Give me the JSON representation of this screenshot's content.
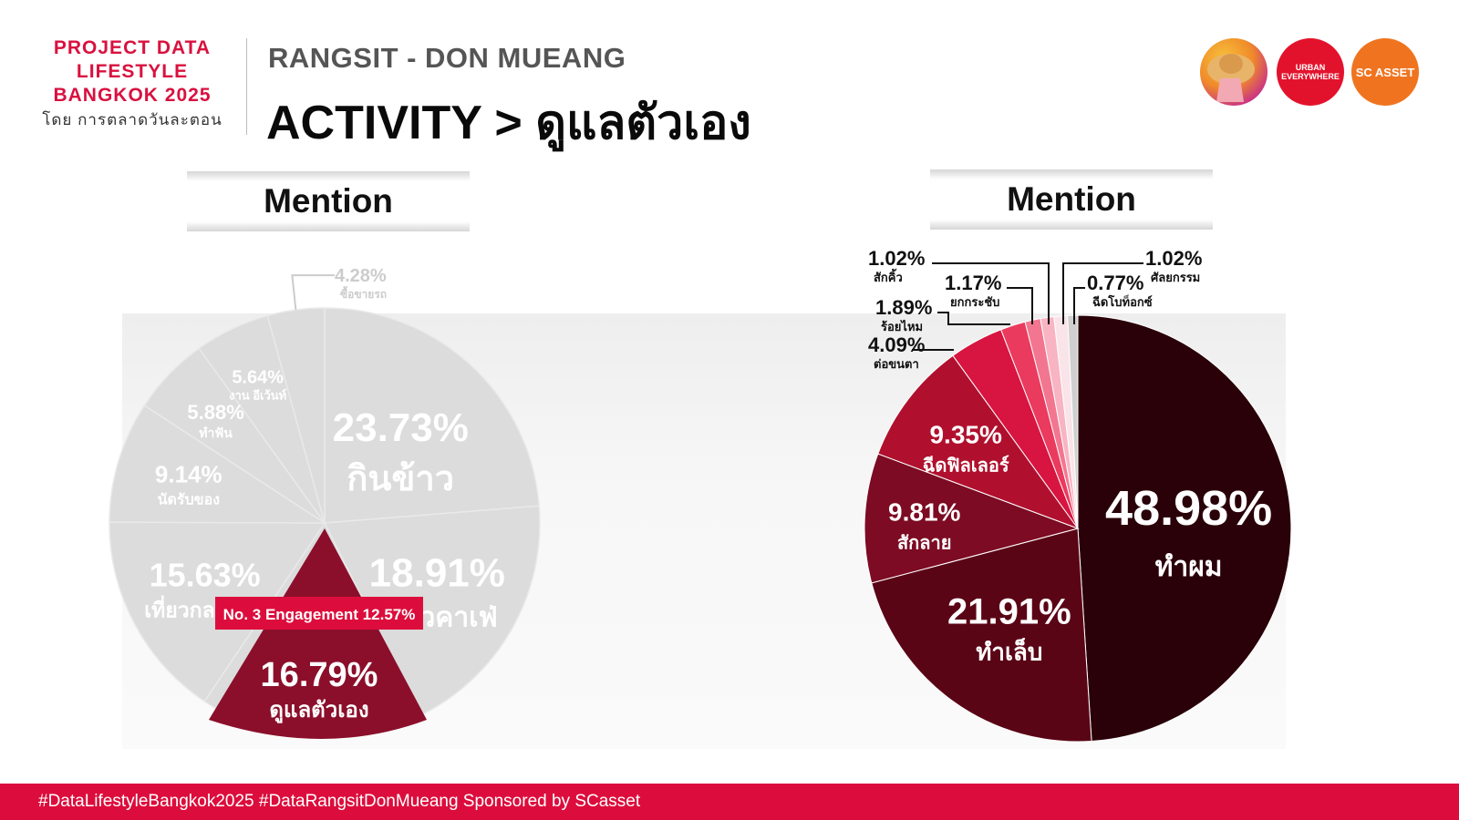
{
  "brand": {
    "line1": "PROJECT DATA",
    "line2": "LIFESTYLE",
    "line3": "BANGKOK 2025",
    "sub": "โดย การตลาดวันละตอน"
  },
  "header": {
    "subtitle": "RANGSIT - DON MUEANG",
    "title": "ACTIVITY > ดูแลตัวเอง"
  },
  "logos": {
    "logo2_text": "URBAN EVERYWHERE",
    "logo3_text": "SC ASSET"
  },
  "colors": {
    "accent": "#dc0d3c",
    "pie_gray": "#dcdcdc",
    "highlight": "#8b0f2b"
  },
  "chart_data": [
    {
      "type": "pie",
      "title": "Mention",
      "unit": "%",
      "slices": [
        {
          "label": "กินข้าว",
          "value": 23.73
        },
        {
          "label": "เที่ยวคาเฟ่",
          "value": 18.91
        },
        {
          "label": "ดูแลตัวเอง",
          "value": 16.79,
          "highlight": true
        },
        {
          "label": "เที่ยวกลางคืน",
          "value": 15.63
        },
        {
          "label": "นัดรับของ",
          "value": 9.14
        },
        {
          "label": "ทำฟัน",
          "value": 5.88
        },
        {
          "label": "งาน อีเว้นท์",
          "value": 5.64
        },
        {
          "label": "ซื้อขายรถ",
          "value": 4.28
        }
      ],
      "annotation": "No. 3 Engagement 12.57%"
    },
    {
      "type": "pie",
      "title": "Mention",
      "unit": "%",
      "slices": [
        {
          "label": "ทำผม",
          "value": 48.98,
          "color": "#2a0009"
        },
        {
          "label": "ทำเล็บ",
          "value": 21.91,
          "color": "#5a0516"
        },
        {
          "label": "สักลาย",
          "value": 9.81,
          "color": "#7c0b23"
        },
        {
          "label": "ฉีดฟิลเลอร์",
          "value": 9.35,
          "color": "#b0102e"
        },
        {
          "label": "ต่อขนตา",
          "value": 4.09,
          "color": "#d81440"
        },
        {
          "label": "ร้อยไหม",
          "value": 1.89,
          "color": "#ea3a5e"
        },
        {
          "label": "ยกกระชับ",
          "value": 1.17,
          "color": "#f2768f"
        },
        {
          "label": "สักคิ้ว",
          "value": 1.02,
          "color": "#f8b4c2"
        },
        {
          "label": "ศัลยกรรม",
          "value": 1.02,
          "color": "#f9e4e9"
        },
        {
          "label": "ฉีดโบท็อกซ์",
          "value": 0.77,
          "color": "#cfcfcf"
        }
      ]
    }
  ],
  "footer": {
    "text": "#DataLifestyleBangkok2025 #DataRangsitDonMueang Sponsored by SCasset"
  }
}
